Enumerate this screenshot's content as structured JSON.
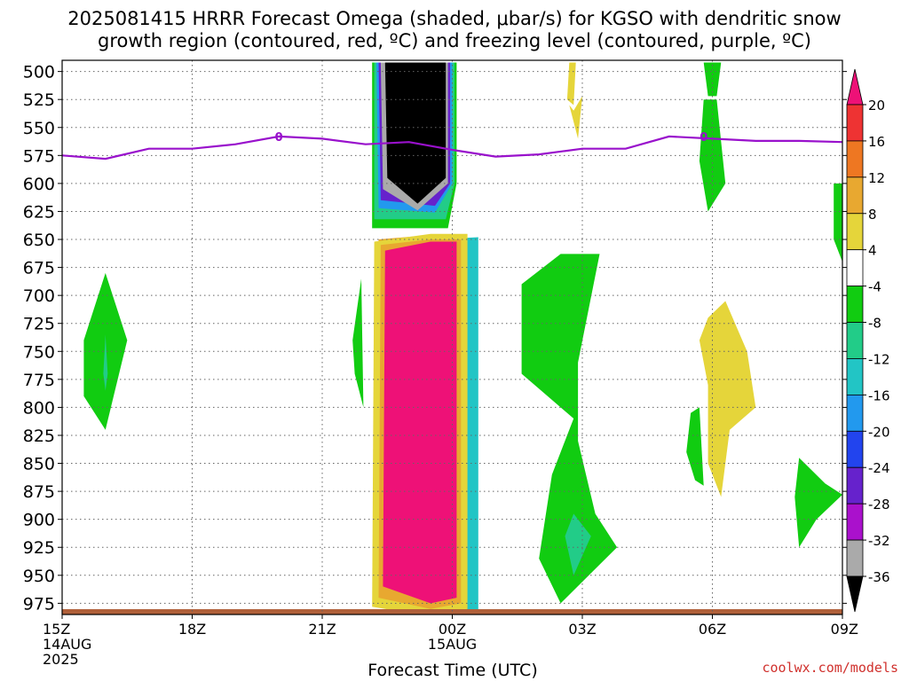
{
  "title": {
    "line1": "2025081415 HRRR Forecast Omega (shaded, μbar/s) for KGSO with dendritic snow",
    "line2": "growth region (contoured, red, ºC) and freezing level (contoured, purple, ºC)"
  },
  "credit": "coolwx.com/models",
  "chart_data": {
    "type": "heatmap",
    "xlabel": "Forecast Time (UTC)",
    "ylabel": "",
    "x_units": "hours after 2025-08-14 15Z",
    "xlim": [
      0,
      18
    ],
    "ylim": [
      985,
      490
    ],
    "y_ticks": [
      500,
      525,
      550,
      575,
      600,
      625,
      650,
      675,
      700,
      725,
      750,
      775,
      800,
      825,
      850,
      875,
      900,
      925,
      950,
      975
    ],
    "x_ticks": [
      {
        "x": 0,
        "lines": [
          "15Z",
          "14AUG",
          "2025"
        ]
      },
      {
        "x": 3,
        "lines": [
          "18Z"
        ]
      },
      {
        "x": 6,
        "lines": [
          "21Z"
        ]
      },
      {
        "x": 9,
        "lines": [
          "00Z",
          "15AUG"
        ]
      },
      {
        "x": 12,
        "lines": [
          "03Z"
        ]
      },
      {
        "x": 15,
        "lines": [
          "06Z"
        ]
      },
      {
        "x": 18,
        "lines": [
          "09Z"
        ]
      }
    ],
    "grid": true,
    "colorbar": {
      "labels": [
        20,
        16,
        12,
        8,
        4,
        -4,
        -8,
        -12,
        -16,
        -20,
        -24,
        -28,
        -32,
        -36
      ],
      "bins": [
        {
          "range": "top-arrow",
          "color": "#ee1177"
        },
        {
          "range": "16 to 20",
          "color": "#ee3333"
        },
        {
          "range": "12 to 16",
          "color": "#ee7722"
        },
        {
          "range": "8 to 12",
          "color": "#e8a830"
        },
        {
          "range": "4 to 8",
          "color": "#e5d53a"
        },
        {
          "range": "-4 to 4",
          "color": "#ffffff"
        },
        {
          "range": "-8 to -4",
          "color": "#11cc11"
        },
        {
          "range": "-12 to -8",
          "color": "#22cc88"
        },
        {
          "range": "-16 to -12",
          "color": "#22c5c5"
        },
        {
          "range": "-20 to -16",
          "color": "#2299ee"
        },
        {
          "range": "-24 to -20",
          "color": "#2244ee"
        },
        {
          "range": "-28 to -24",
          "color": "#6622cc"
        },
        {
          "range": "-32 to -28",
          "color": "#aa11cc"
        },
        {
          "range": "-36 to -32",
          "color": "#aaaaaa"
        },
        {
          "range": "bottom-arrow",
          "color": "#000000"
        }
      ]
    },
    "freezing_level": {
      "label": "0",
      "color": "#9911cc",
      "points": [
        [
          0,
          575
        ],
        [
          1,
          578
        ],
        [
          2,
          569
        ],
        [
          3,
          569
        ],
        [
          4,
          565
        ],
        [
          5,
          558
        ],
        [
          6,
          560
        ],
        [
          7,
          565
        ],
        [
          8,
          563
        ],
        [
          9,
          570
        ],
        [
          10,
          576
        ],
        [
          11,
          574
        ],
        [
          12,
          569
        ],
        [
          13,
          569
        ],
        [
          14,
          558
        ],
        [
          15,
          560
        ],
        [
          16,
          562
        ],
        [
          17,
          562
        ],
        [
          18,
          563
        ]
      ],
      "label_positions": [
        [
          5,
          558
        ],
        [
          14.8,
          558
        ]
      ]
    },
    "omega_regions": [
      {
        "color": "#22c5c5",
        "points": [
          [
            8.7,
            990
          ],
          [
            8.6,
            650
          ],
          [
            9.6,
            648
          ],
          [
            9.6,
            990
          ]
        ]
      },
      {
        "color": "#e8a830",
        "points": [
          [
            7.2,
            978
          ],
          [
            7.3,
            650
          ],
          [
            8.5,
            646
          ],
          [
            9.3,
            646
          ],
          [
            9.3,
            978
          ],
          [
            8.5,
            985
          ]
        ]
      },
      {
        "color": "#e5d53a",
        "points": [
          [
            7.15,
            978
          ],
          [
            7.2,
            652
          ],
          [
            8.5,
            645
          ],
          [
            9.35,
            645
          ],
          [
            9.35,
            980
          ],
          [
            8.5,
            987
          ]
        ]
      },
      {
        "color": "#e8a830",
        "points": [
          [
            7.3,
            970
          ],
          [
            7.35,
            655
          ],
          [
            8.5,
            650
          ],
          [
            9.2,
            650
          ],
          [
            9.2,
            975
          ],
          [
            8.5,
            980
          ]
        ]
      },
      {
        "color": "#ee1177",
        "points": [
          [
            7.4,
            960
          ],
          [
            7.45,
            660
          ],
          [
            8.5,
            652
          ],
          [
            9.1,
            652
          ],
          [
            9.1,
            970
          ],
          [
            8.5,
            975
          ]
        ]
      },
      {
        "color": "#11cc11",
        "points": [
          [
            7.15,
            492
          ],
          [
            7.15,
            640
          ],
          [
            8.9,
            640
          ],
          [
            9.1,
            600
          ],
          [
            9.1,
            492
          ]
        ]
      },
      {
        "color": "#22cc88",
        "points": [
          [
            7.2,
            492
          ],
          [
            7.2,
            632
          ],
          [
            8.85,
            632
          ],
          [
            9.05,
            600
          ],
          [
            9.05,
            492
          ]
        ]
      },
      {
        "color": "#2299ee",
        "points": [
          [
            7.25,
            492
          ],
          [
            7.3,
            622
          ],
          [
            8.6,
            626
          ],
          [
            9.0,
            600
          ],
          [
            9.0,
            492
          ]
        ]
      },
      {
        "color": "#6622cc",
        "points": [
          [
            7.3,
            492
          ],
          [
            7.35,
            615
          ],
          [
            8.6,
            620
          ],
          [
            8.95,
            600
          ],
          [
            8.95,
            492
          ]
        ]
      },
      {
        "color": "#aaaaaa",
        "points": [
          [
            7.35,
            492
          ],
          [
            7.4,
            605
          ],
          [
            8.2,
            624
          ],
          [
            8.9,
            600
          ],
          [
            8.9,
            492
          ]
        ]
      },
      {
        "color": "#000000",
        "points": [
          [
            7.45,
            492
          ],
          [
            7.5,
            595
          ],
          [
            8.2,
            618
          ],
          [
            8.85,
            595
          ],
          [
            8.85,
            492
          ]
        ]
      },
      {
        "color": "#11cc11",
        "points": [
          [
            1.0,
            680
          ],
          [
            1.5,
            740
          ],
          [
            1.0,
            820
          ],
          [
            0.5,
            790
          ],
          [
            0.5,
            740
          ]
        ]
      },
      {
        "color": "#22cc88",
        "points": [
          [
            1.0,
            735
          ],
          [
            1.05,
            770
          ],
          [
            1.0,
            785
          ],
          [
            0.95,
            770
          ]
        ]
      },
      {
        "color": "#11cc11",
        "points": [
          [
            6.9,
            685
          ],
          [
            6.95,
            800
          ],
          [
            6.75,
            770
          ],
          [
            6.7,
            740
          ]
        ]
      },
      {
        "color": "#11cc11",
        "points": [
          [
            10.6,
            690
          ],
          [
            11.5,
            663
          ],
          [
            12.4,
            663
          ],
          [
            11.9,
            760
          ],
          [
            11.9,
            830
          ],
          [
            12.3,
            895
          ],
          [
            12.8,
            925
          ],
          [
            11.5,
            975
          ],
          [
            11.0,
            935
          ],
          [
            11.3,
            860
          ],
          [
            11.8,
            810
          ],
          [
            10.6,
            770
          ],
          [
            10.6,
            700
          ]
        ]
      },
      {
        "color": "#22cc88",
        "points": [
          [
            11.8,
            895
          ],
          [
            12.2,
            915
          ],
          [
            11.8,
            950
          ],
          [
            11.6,
            915
          ]
        ]
      },
      {
        "color": "#11cc11",
        "points": [
          [
            14.8,
            492
          ],
          [
            15.2,
            492
          ],
          [
            15.1,
            522
          ],
          [
            14.9,
            522
          ]
        ]
      },
      {
        "color": "#11cc11",
        "points": [
          [
            14.8,
            525
          ],
          [
            15.1,
            525
          ],
          [
            15.3,
            600
          ],
          [
            14.9,
            625
          ],
          [
            14.7,
            580
          ]
        ]
      },
      {
        "color": "#11cc11",
        "points": [
          [
            14.5,
            805
          ],
          [
            14.7,
            800
          ],
          [
            14.8,
            870
          ],
          [
            14.6,
            865
          ],
          [
            14.4,
            840
          ]
        ]
      },
      {
        "color": "#11cc11",
        "points": [
          [
            17.8,
            600
          ],
          [
            18.3,
            600
          ],
          [
            18.3,
            700
          ],
          [
            17.8,
            650
          ]
        ]
      },
      {
        "color": "#11cc11",
        "points": [
          [
            17.0,
            845
          ],
          [
            17.6,
            868
          ],
          [
            18.0,
            878
          ],
          [
            17.4,
            900
          ],
          [
            17.0,
            925
          ],
          [
            16.9,
            880
          ]
        ]
      },
      {
        "color": "#e5d53a",
        "points": [
          [
            11.8,
            535
          ],
          [
            12.0,
            522
          ],
          [
            11.9,
            560
          ],
          [
            11.7,
            530
          ]
        ]
      },
      {
        "color": "#e5d53a",
        "points": [
          [
            15.3,
            705
          ],
          [
            15.8,
            750
          ],
          [
            16.0,
            800
          ],
          [
            15.4,
            820
          ],
          [
            15.2,
            880
          ],
          [
            14.9,
            850
          ],
          [
            14.9,
            780
          ],
          [
            14.7,
            740
          ],
          [
            14.9,
            720
          ]
        ]
      },
      {
        "color": "#e5d53a",
        "points": [
          [
            11.7,
            492
          ],
          [
            11.85,
            492
          ],
          [
            11.8,
            530
          ],
          [
            11.65,
            525
          ]
        ]
      }
    ]
  }
}
